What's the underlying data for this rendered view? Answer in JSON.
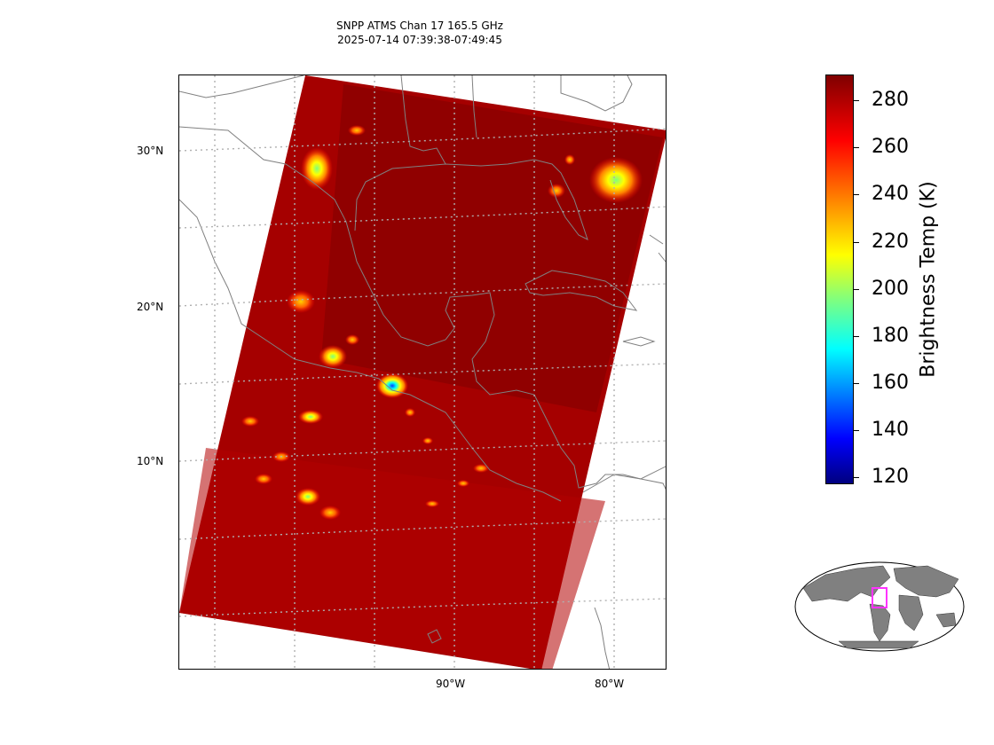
{
  "title": {
    "line1": "SNPP ATMS Chan 17 165.5 GHz",
    "line2": "2025-07-14 07:39:38-07:49:45"
  },
  "map": {
    "lat_labels": [
      "30°N",
      "20°N",
      "10°N"
    ],
    "lon_labels": [
      "90°W",
      "80°W"
    ],
    "gridlines": "dotted",
    "coastline_color": "#808080"
  },
  "colorbar": {
    "label": "Brightness Temp (K)",
    "ticks": [
      "280",
      "260",
      "240",
      "220",
      "200",
      "180",
      "160",
      "140",
      "120"
    ],
    "range": [
      117,
      291
    ],
    "colormap": "jet"
  },
  "chart_data": {
    "type": "heatmap",
    "instrument": "SNPP ATMS Chan 17 165.5 GHz",
    "time_range": "2025-07-14 07:39:38-07:49:45",
    "background_value_K": 285,
    "cold_spots": [
      {
        "lat": 29,
        "lon": -97,
        "tb_K": 225
      },
      {
        "lat": 29,
        "lon": -76,
        "tb_K": 215
      },
      {
        "lat": 20.5,
        "lon": -98,
        "tb_K": 255
      },
      {
        "lat": 17,
        "lon": -96,
        "tb_K": 240
      },
      {
        "lat": 15,
        "lon": -92,
        "tb_K": 170
      },
      {
        "lat": 12.5,
        "lon": -97.5,
        "tb_K": 230
      },
      {
        "lat": 8,
        "lon": -97.5,
        "tb_K": 215
      }
    ],
    "colorbar_range": [
      117,
      291
    ],
    "colors": {
      "low": "#00007f",
      "high": "#7f0000",
      "swath": "#a00000"
    }
  }
}
